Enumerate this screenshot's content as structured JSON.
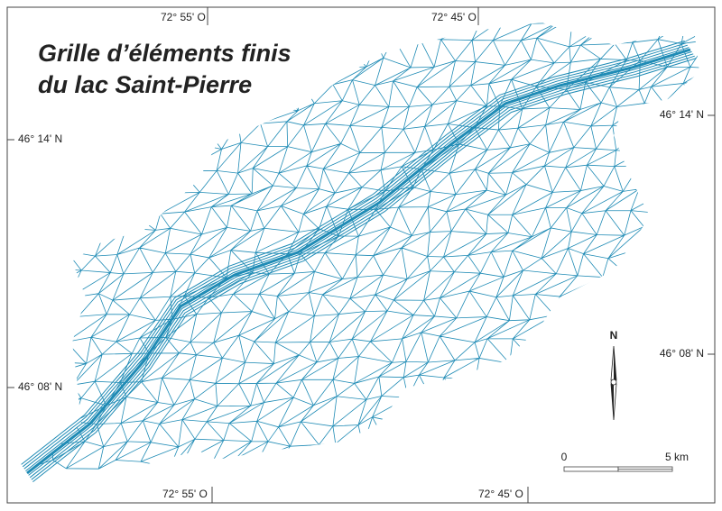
{
  "title": [
    "Grille d’éléments finis",
    "du lac Saint-Pierre"
  ],
  "graticule": {
    "top": [
      "72° 55' O",
      "72° 45' O"
    ],
    "bottom": [
      "72° 55' O",
      "72° 45' O"
    ],
    "left": [
      "46° 14' N",
      "46° 08' N"
    ],
    "right": [
      "46° 14' N",
      "46° 08' N"
    ]
  },
  "north": "N",
  "scale": {
    "start": "0",
    "end": "5 km"
  }
}
